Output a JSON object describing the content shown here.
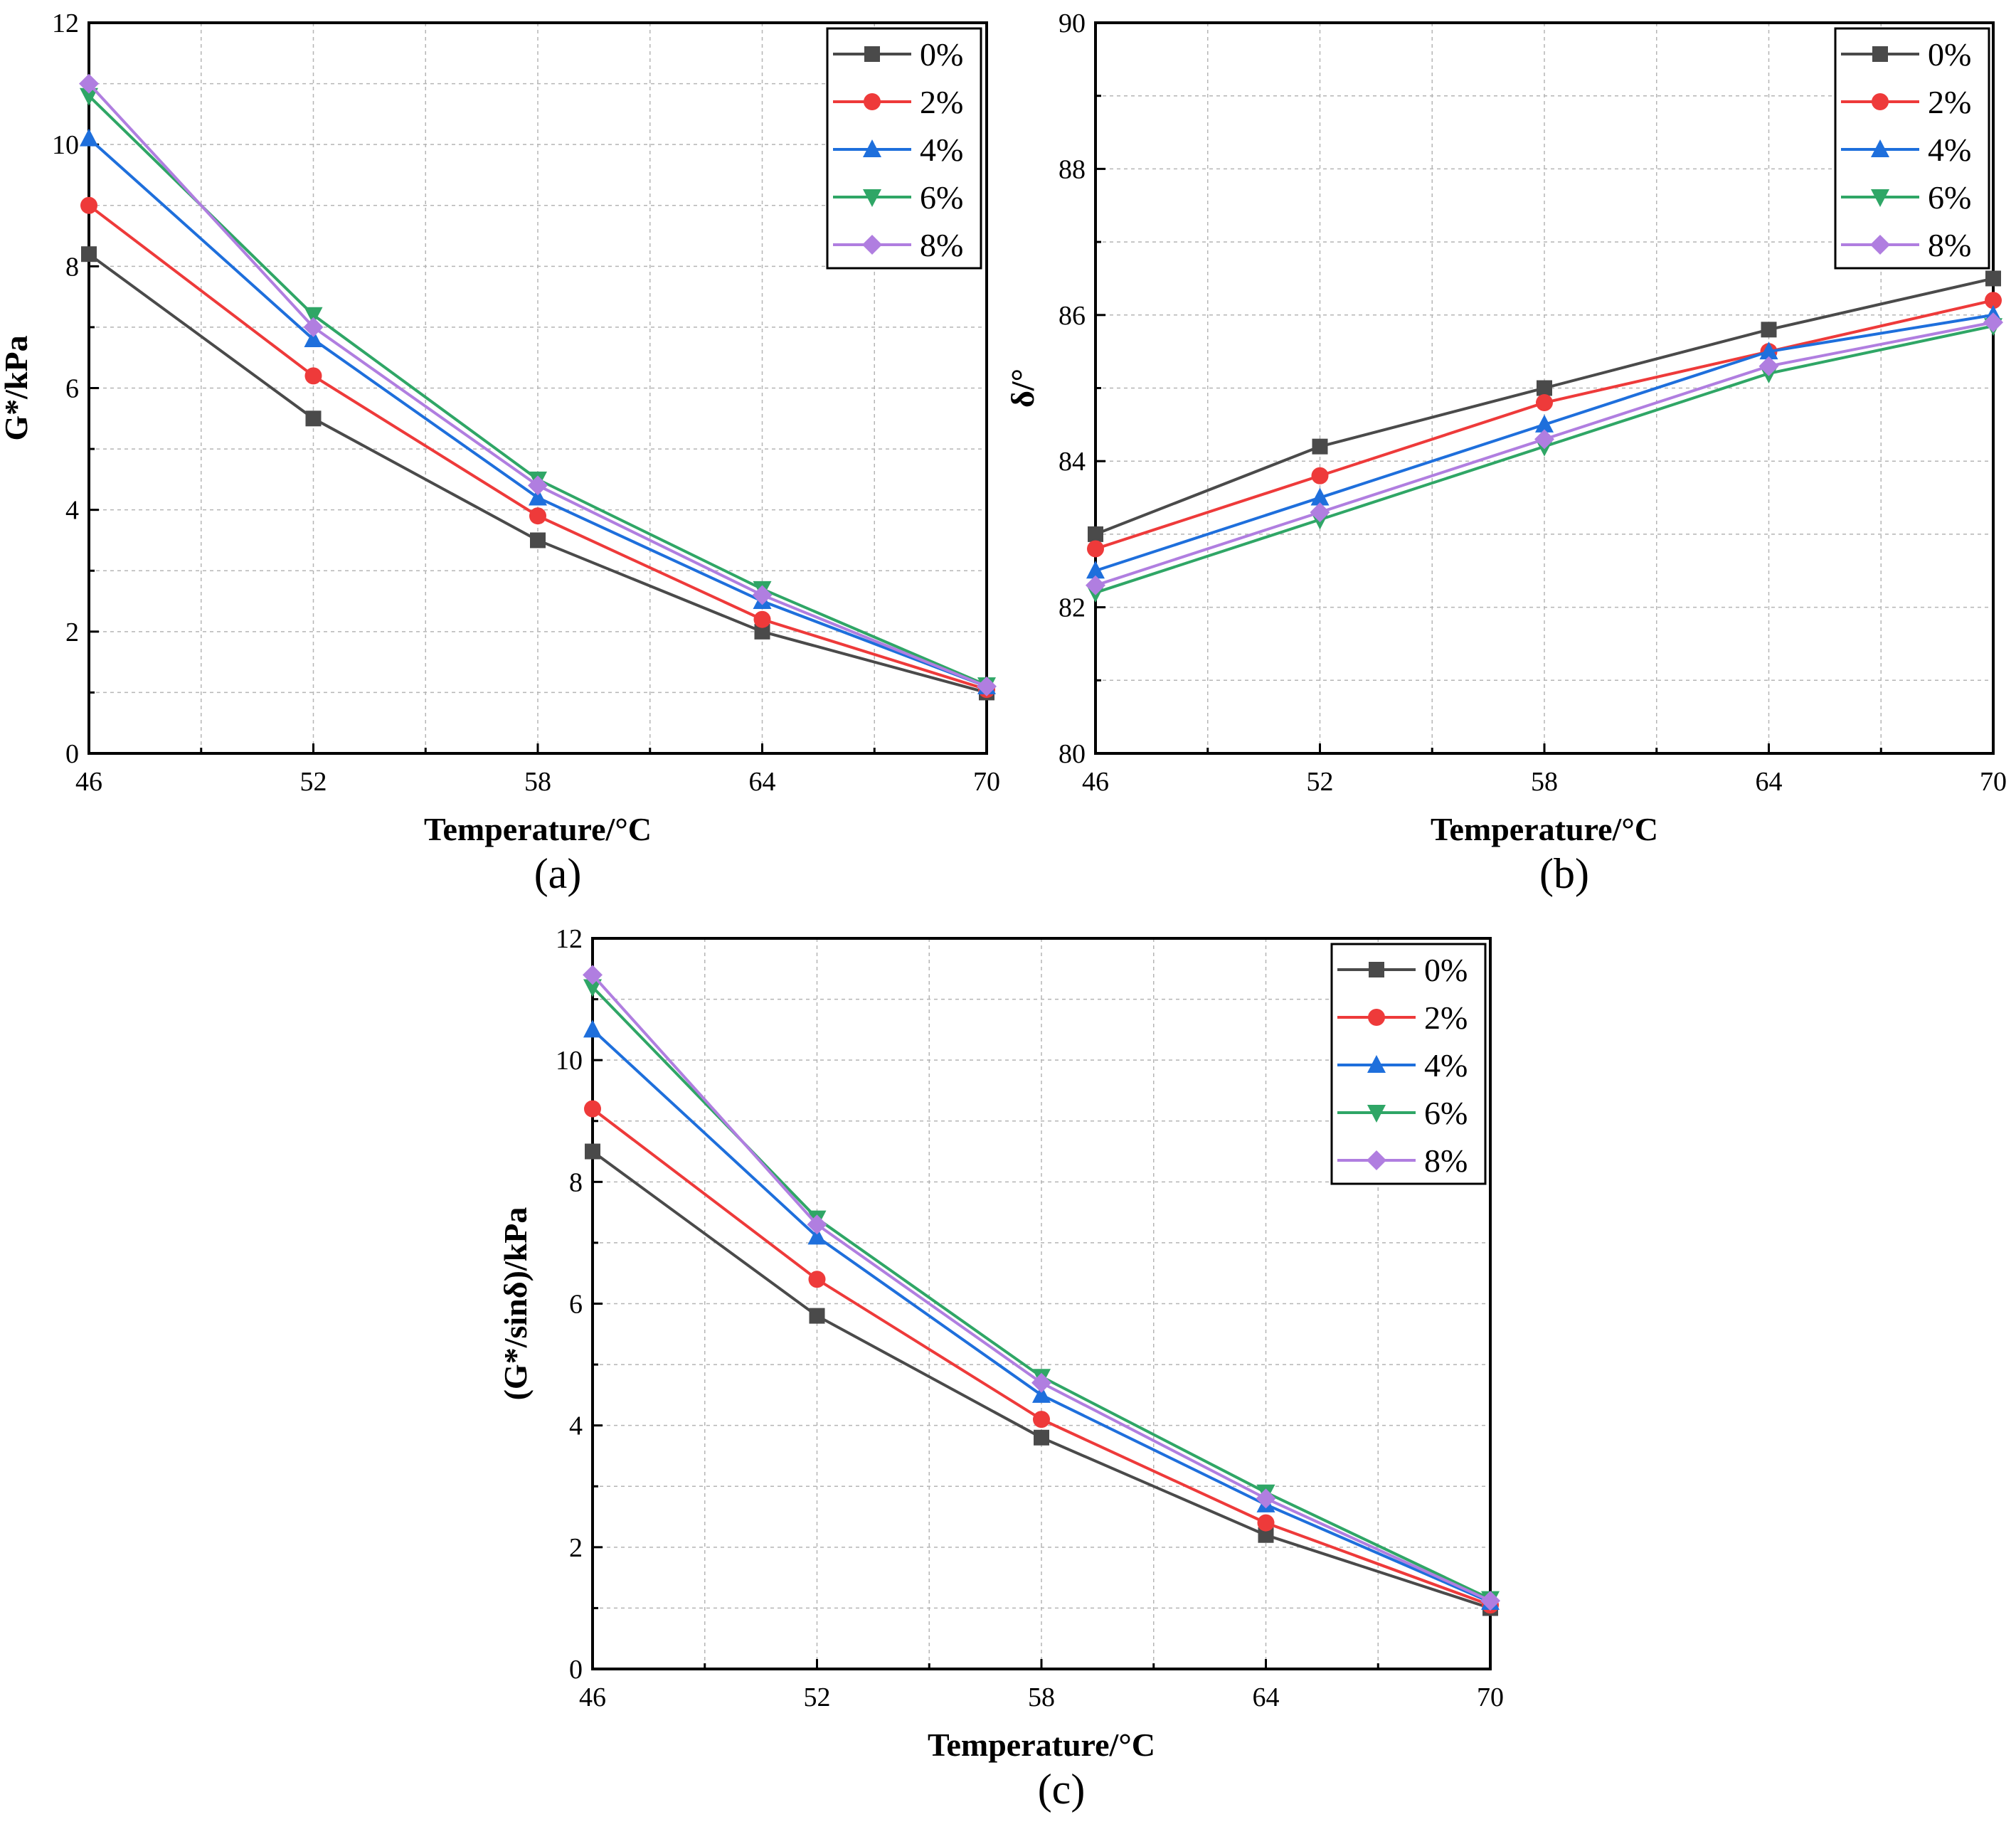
{
  "series_styles": [
    {
      "name": "0%",
      "color": "#4a4a4a",
      "marker": "square"
    },
    {
      "name": "2%",
      "color": "#ee3a3a",
      "marker": "circle"
    },
    {
      "name": "4%",
      "color": "#1e6fdc",
      "marker": "triangle-up"
    },
    {
      "name": "6%",
      "color": "#2fa666",
      "marker": "triangle-down"
    },
    {
      "name": "8%",
      "color": "#b07ee0",
      "marker": "diamond"
    }
  ],
  "chart_data": [
    {
      "type": "line",
      "panel_label": "(a)",
      "xlabel": "Temperature/°C",
      "ylabel": "G*/kPa",
      "x": [
        46,
        52,
        58,
        64,
        70
      ],
      "xticks": [
        "46",
        "52",
        "58",
        "64",
        "70"
      ],
      "ylim": [
        0,
        12
      ],
      "yticks": [
        "0",
        "2",
        "4",
        "6",
        "8",
        "10",
        "12"
      ],
      "grid": true,
      "legend": "top-right",
      "series": [
        {
          "name": "0%",
          "values": [
            8.2,
            5.5,
            3.5,
            2.0,
            1.0
          ]
        },
        {
          "name": "2%",
          "values": [
            9.0,
            6.2,
            3.9,
            2.2,
            1.05
          ]
        },
        {
          "name": "4%",
          "values": [
            10.1,
            6.8,
            4.2,
            2.5,
            1.1
          ]
        },
        {
          "name": "6%",
          "values": [
            10.8,
            7.2,
            4.5,
            2.7,
            1.12
          ]
        },
        {
          "name": "8%",
          "values": [
            11.0,
            7.0,
            4.4,
            2.6,
            1.1
          ]
        }
      ]
    },
    {
      "type": "line",
      "panel_label": "(b)",
      "xlabel": "Temperature/°C",
      "ylabel": "δ/°",
      "x": [
        46,
        52,
        58,
        64,
        70
      ],
      "xticks": [
        "46",
        "52",
        "58",
        "64",
        "70"
      ],
      "ylim": [
        80,
        90
      ],
      "yticks": [
        "80",
        "82",
        "84",
        "86",
        "88",
        "90"
      ],
      "grid": true,
      "legend": "top-right",
      "series": [
        {
          "name": "0%",
          "values": [
            83.0,
            84.2,
            85.0,
            85.8,
            86.5
          ]
        },
        {
          "name": "2%",
          "values": [
            82.8,
            83.8,
            84.8,
            85.5,
            86.2
          ]
        },
        {
          "name": "4%",
          "values": [
            82.5,
            83.5,
            84.5,
            85.5,
            86.0
          ]
        },
        {
          "name": "6%",
          "values": [
            82.2,
            83.2,
            84.2,
            85.2,
            85.85
          ]
        },
        {
          "name": "8%",
          "values": [
            82.3,
            83.3,
            84.3,
            85.3,
            85.9
          ]
        }
      ]
    },
    {
      "type": "line",
      "panel_label": "(c)",
      "xlabel": "Temperature/°C",
      "ylabel": "(G*/sinδ)/kPa",
      "x": [
        46,
        52,
        58,
        64,
        70
      ],
      "xticks": [
        "46",
        "52",
        "58",
        "64",
        "70"
      ],
      "ylim": [
        0,
        12
      ],
      "yticks": [
        "0",
        "2",
        "4",
        "6",
        "8",
        "10",
        "12"
      ],
      "grid": true,
      "legend": "top-right",
      "series": [
        {
          "name": "0%",
          "values": [
            8.5,
            5.8,
            3.8,
            2.2,
            1.0
          ]
        },
        {
          "name": "2%",
          "values": [
            9.2,
            6.4,
            4.1,
            2.4,
            1.05
          ]
        },
        {
          "name": "4%",
          "values": [
            10.5,
            7.1,
            4.5,
            2.7,
            1.1
          ]
        },
        {
          "name": "6%",
          "values": [
            11.2,
            7.4,
            4.8,
            2.9,
            1.15
          ]
        },
        {
          "name": "8%",
          "values": [
            11.4,
            7.3,
            4.7,
            2.8,
            1.12
          ]
        }
      ]
    }
  ]
}
